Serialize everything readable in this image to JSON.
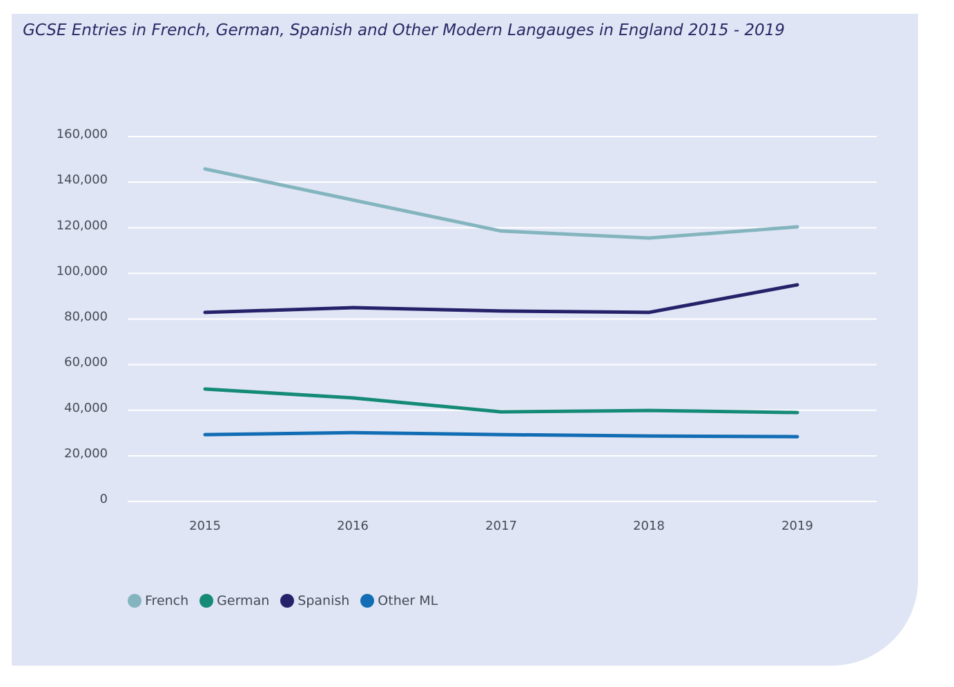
{
  "chart_data": {
    "type": "line",
    "title": "GCSE Entries in French, German, Spanish and Other Modern Langauges in England 2015 - 2019",
    "xlabel": "",
    "ylabel": "",
    "categories": [
      "2015",
      "2016",
      "2017",
      "2018",
      "2019"
    ],
    "ylim": [
      0,
      160000
    ],
    "yticks": [
      0,
      20000,
      40000,
      60000,
      80000,
      100000,
      120000,
      140000,
      160000
    ],
    "ytick_labels": [
      "0",
      "20,000",
      "40,000",
      "60,000",
      "80,000",
      "100,000",
      "120,000",
      "140,000",
      "160,000"
    ],
    "grid": "horizontal",
    "legend_position": "bottom-left",
    "series": [
      {
        "name": "French",
        "color": "#84b5bf",
        "values": [
          145800,
          132200,
          118600,
          115500,
          120400
        ]
      },
      {
        "name": "German",
        "color": "#148a77",
        "values": [
          49300,
          45400,
          39300,
          39900,
          39000
        ]
      },
      {
        "name": "Spanish",
        "color": "#27216a",
        "values": [
          82900,
          85000,
          83500,
          82900,
          95000
        ]
      },
      {
        "name": "Other ML",
        "color": "#126db5",
        "values": [
          29300,
          30200,
          29300,
          28700,
          28400
        ]
      }
    ]
  },
  "colors": {
    "panel_background": "#dfe5f4",
    "gridline": "#ffffff",
    "title": "#2c2766"
  }
}
